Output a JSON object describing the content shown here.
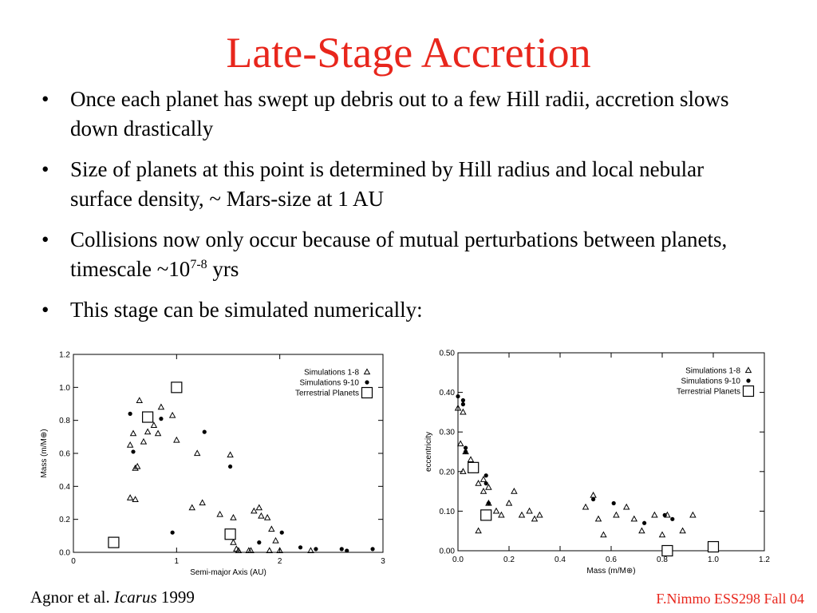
{
  "slide": {
    "title": "Late-Stage Accretion",
    "bullets": [
      {
        "text": "Once each planet has swept up debris out to a few Hill radii, accretion slows down drastically"
      },
      {
        "text": "Size of planets at this point is determined by Hill radius and local nebular surface density, ~ Mars-size at 1 AU"
      },
      {
        "text": "Collisions now only occur because of mutual perturbations between planets, timescale ~10",
        "sup": "7-8",
        "after": " yrs"
      },
      {
        "text": "This stage can be simulated numerically:"
      }
    ],
    "bullet_glyph": "•",
    "footer": {
      "citation_prefix": "Agnor et al. ",
      "citation_journal": "Icarus",
      "citation_year": " 1999",
      "credit": "F.Nimmo ESS298 Fall 04"
    },
    "accent_color": "#e8261c"
  },
  "chart_data": [
    {
      "type": "scatter",
      "xlabel": "Semi-major Axis (AU)",
      "ylabel": "Mass (m/M⊕)",
      "xlim": [
        0,
        3
      ],
      "ylim": [
        0,
        1.2
      ],
      "xticks": [
        0,
        1,
        2,
        3
      ],
      "yticks": [
        0.0,
        0.2,
        0.4,
        0.6,
        0.8,
        1.0,
        1.2
      ],
      "ytick_labels": [
        "0.0",
        "0.2",
        "0.4",
        "0.6",
        "0.8",
        "1.0",
        "1.2"
      ],
      "legend_position": "top-right",
      "series": [
        {
          "name": "Simulations 1-8",
          "marker": "triangle",
          "x": [
            0.55,
            0.58,
            0.6,
            0.62,
            0.64,
            0.68,
            0.55,
            0.6,
            0.72,
            0.78,
            0.82,
            0.85,
            0.96,
            1.0,
            1.15,
            1.2,
            1.25,
            1.42,
            1.52,
            1.55,
            1.55,
            1.6,
            1.75,
            1.8,
            1.82,
            1.88,
            1.92,
            1.96,
            2.0,
            1.7,
            1.72,
            1.9,
            2.3,
            1.58
          ],
          "y": [
            0.65,
            0.72,
            0.51,
            0.52,
            0.92,
            0.67,
            0.33,
            0.32,
            0.73,
            0.77,
            0.72,
            0.88,
            0.83,
            0.68,
            0.27,
            0.6,
            0.3,
            0.23,
            0.59,
            0.21,
            0.06,
            0.01,
            0.25,
            0.27,
            0.22,
            0.21,
            0.14,
            0.07,
            0.01,
            0.01,
            0.01,
            0.01,
            0.01,
            0.02
          ]
        },
        {
          "name": "Simulations 9-10",
          "marker": "circle",
          "x": [
            0.55,
            0.58,
            0.85,
            0.96,
            1.27,
            1.52,
            1.8,
            2.02,
            2.2,
            2.35,
            2.6,
            2.65,
            2.9
          ],
          "y": [
            0.84,
            0.61,
            0.81,
            0.12,
            0.73,
            0.52,
            0.06,
            0.12,
            0.03,
            0.02,
            0.02,
            0.01,
            0.02
          ]
        },
        {
          "name": "Terrestrial Planets",
          "marker": "square",
          "x": [
            0.39,
            0.72,
            1.0,
            1.52
          ],
          "y": [
            0.06,
            0.82,
            1.0,
            0.11
          ]
        }
      ]
    },
    {
      "type": "scatter",
      "xlabel": "Mass (m/M⊕)",
      "ylabel": "eccentricity",
      "xlim": [
        0,
        1.2
      ],
      "ylim": [
        0,
        0.5
      ],
      "xticks": [
        0.0,
        0.2,
        0.4,
        0.6,
        0.8,
        1.0,
        1.2
      ],
      "xtick_labels": [
        "0.0",
        "0.2",
        "0.4",
        "0.6",
        "0.8",
        "1.0",
        "1.2"
      ],
      "yticks": [
        0.0,
        0.1,
        0.2,
        0.3,
        0.4,
        0.5
      ],
      "ytick_labels": [
        "0.00",
        "0.10",
        "0.20",
        "0.30",
        "0.40",
        "0.50"
      ],
      "legend_position": "top-right",
      "series": [
        {
          "name": "Simulations 1-8",
          "marker": "triangle",
          "x": [
            0.0,
            0.01,
            0.02,
            0.03,
            0.02,
            0.05,
            0.06,
            0.08,
            0.1,
            0.12,
            0.15,
            0.17,
            0.2,
            0.22,
            0.25,
            0.28,
            0.3,
            0.32,
            0.5,
            0.53,
            0.55,
            0.57,
            0.62,
            0.66,
            0.69,
            0.72,
            0.77,
            0.8,
            0.82,
            0.88,
            0.92,
            0.12,
            0.1,
            0.08
          ],
          "y": [
            0.36,
            0.27,
            0.35,
            0.25,
            0.2,
            0.23,
            0.21,
            0.17,
            0.15,
            0.12,
            0.1,
            0.09,
            0.12,
            0.15,
            0.09,
            0.1,
            0.08,
            0.09,
            0.11,
            0.14,
            0.08,
            0.04,
            0.09,
            0.11,
            0.08,
            0.05,
            0.09,
            0.04,
            0.09,
            0.05,
            0.09,
            0.16,
            0.18,
            0.05
          ]
        },
        {
          "name": "Simulations 9-10",
          "marker": "circle",
          "x": [
            0.0,
            0.02,
            0.03,
            0.03,
            0.11,
            0.12,
            0.11,
            0.53,
            0.61,
            0.73,
            0.81,
            0.84,
            0.02
          ],
          "y": [
            0.39,
            0.38,
            0.26,
            0.25,
            0.19,
            0.12,
            0.17,
            0.13,
            0.12,
            0.07,
            0.09,
            0.08,
            0.37
          ]
        },
        {
          "name": "Terrestrial Planets",
          "marker": "square",
          "x": [
            0.06,
            0.11,
            0.82,
            1.0
          ],
          "y": [
            0.21,
            0.09,
            0.0,
            0.01
          ]
        }
      ]
    }
  ]
}
